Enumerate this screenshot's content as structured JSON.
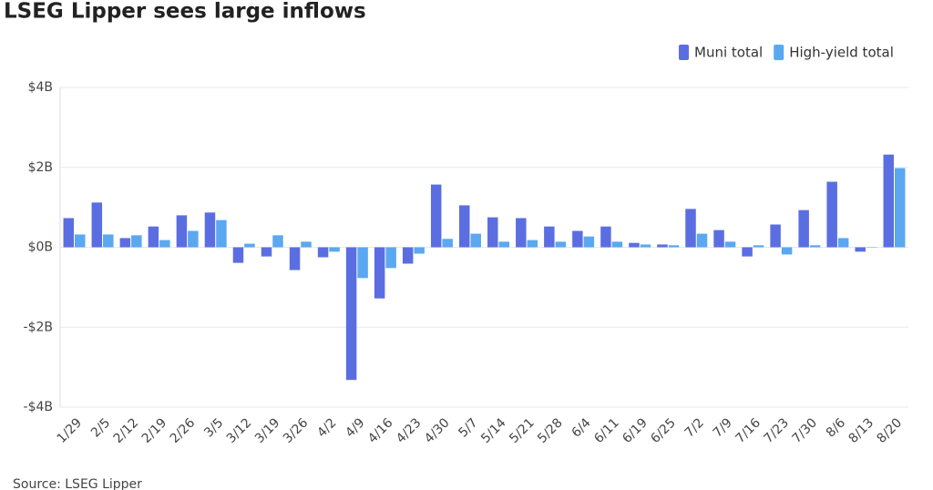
{
  "chart_data": {
    "type": "bar",
    "title": "LSEG Lipper sees large inflows",
    "source": "Source: LSEG Lipper",
    "categories": [
      "1/29",
      "2/5",
      "2/12",
      "2/19",
      "2/26",
      "3/5",
      "3/12",
      "3/19",
      "3/26",
      "4/2",
      "4/9",
      "4/16",
      "4/23",
      "4/30",
      "5/7",
      "5/14",
      "5/21",
      "5/28",
      "6/4",
      "6/11",
      "6/19",
      "6/25",
      "7/2",
      "7/9",
      "7/16",
      "7/23",
      "7/30",
      "8/6",
      "8/13",
      "8/20"
    ],
    "series": [
      {
        "name": "Muni total",
        "color": "#5b6ee1",
        "values": [
          0.73,
          1.12,
          0.23,
          0.52,
          0.8,
          0.87,
          -0.39,
          -0.23,
          -0.57,
          -0.25,
          -3.32,
          -1.28,
          -0.41,
          1.57,
          1.05,
          0.75,
          0.73,
          0.52,
          0.41,
          0.52,
          0.11,
          0.07,
          0.96,
          0.43,
          -0.23,
          0.57,
          0.93,
          1.64,
          -0.11,
          2.32
        ]
      },
      {
        "name": "High-yield total",
        "color": "#5aa8f0",
        "values": [
          0.32,
          0.32,
          0.3,
          0.18,
          0.41,
          0.68,
          0.09,
          0.3,
          0.14,
          -0.11,
          -0.77,
          -0.52,
          -0.16,
          0.21,
          0.34,
          0.14,
          0.18,
          0.14,
          0.27,
          0.14,
          0.07,
          0.05,
          0.34,
          0.14,
          0.05,
          -0.18,
          0.05,
          0.23,
          0.01,
          1.98
        ]
      }
    ],
    "ylim": [
      -4,
      4
    ],
    "yticks": [
      {
        "value": -4,
        "label": "-$4B"
      },
      {
        "value": -2,
        "label": "-$2B"
      },
      {
        "value": 0,
        "label": "$0B"
      },
      {
        "value": 2,
        "label": "$2B"
      },
      {
        "value": 4,
        "label": "$4B"
      }
    ],
    "grid": true,
    "legend": "top-right"
  }
}
